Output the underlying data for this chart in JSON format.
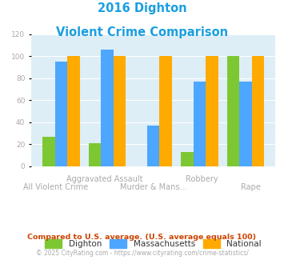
{
  "title_line1": "2016 Dighton",
  "title_line2": "Violent Crime Comparison",
  "title_color": "#1a9fe0",
  "categories": [
    "All Violent Crime",
    "Aggravated Assault",
    "Murder & Mans...",
    "Robbery",
    "Rape"
  ],
  "top_labels": [
    "",
    "Aggravated Assault",
    "",
    "Robbery",
    ""
  ],
  "bottom_labels": [
    "All Violent Crime",
    "",
    "Murder & Mans...",
    "",
    "Rape"
  ],
  "dighton": [
    27,
    21,
    0,
    13,
    100
  ],
  "massachusetts": [
    95,
    106,
    37,
    77,
    77
  ],
  "national": [
    100,
    100,
    100,
    100,
    100
  ],
  "dighton_color": "#7dc832",
  "massachusetts_color": "#4da6ff",
  "national_color": "#ffaa00",
  "ylim": [
    0,
    120
  ],
  "yticks": [
    0,
    20,
    40,
    60,
    80,
    100,
    120
  ],
  "plot_bg": "#ddeef6",
  "footnote1": "Compared to U.S. average. (U.S. average equals 100)",
  "footnote2": "© 2025 CityRating.com - https://www.cityrating.com/crime-statistics/",
  "footnote1_color": "#cc4400",
  "footnote2_color": "#aaaaaa",
  "legend_labels": [
    "Dighton",
    "Massachusetts",
    "National"
  ],
  "tick_label_color": "#aaaaaa",
  "grid_color": "#ffffff"
}
